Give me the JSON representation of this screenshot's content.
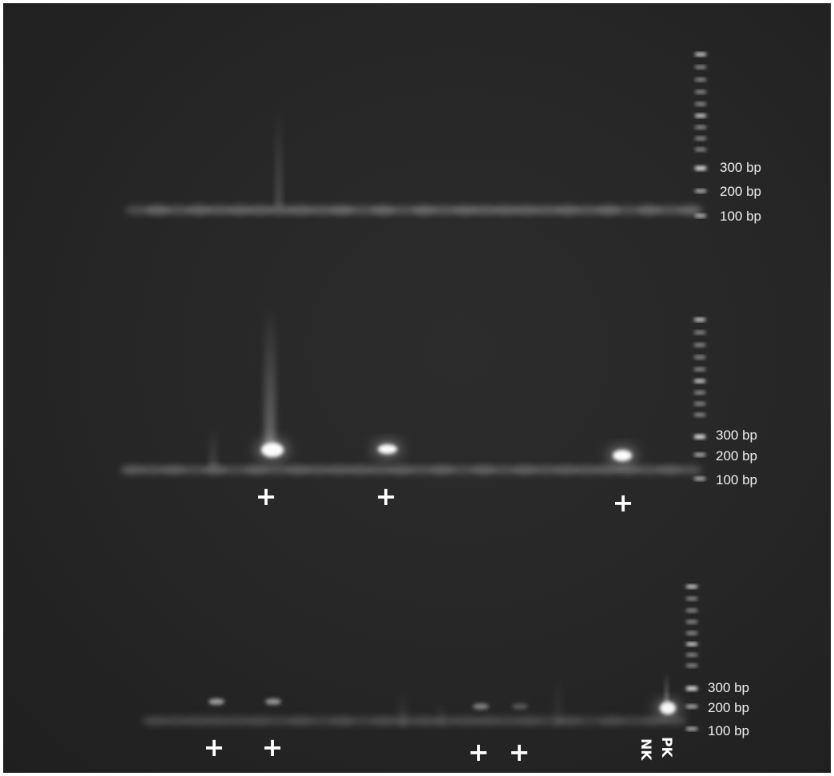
{
  "gel": {
    "rows": [
      {
        "id": "row1",
        "ladder_labels": [
          "300 bp",
          "200 bp",
          "100 bp"
        ],
        "positive_marks": [],
        "bright_bands": [],
        "faint_bands": []
      },
      {
        "id": "row2",
        "ladder_labels": [
          "300 bp",
          "200 bp",
          "100 bp"
        ],
        "positive_marks": [
          "+",
          "+",
          "+"
        ],
        "bright_bands": [
          "lane-7",
          "lane-13",
          "lane-24"
        ],
        "faint_bands": []
      },
      {
        "id": "row3",
        "ladder_labels": [
          "300 bp",
          "200 bp",
          "100 bp"
        ],
        "positive_marks": [
          "+",
          "+",
          "+",
          "+"
        ],
        "bright_bands": [
          "pk"
        ],
        "faint_bands": [
          "lane-4",
          "lane-6",
          "lane-17",
          "lane-19"
        ],
        "controls": [
          "NK",
          "PK"
        ]
      }
    ]
  },
  "colors": {
    "background": "#262626",
    "band": "#ffffff",
    "label": "#f2f2f2"
  }
}
